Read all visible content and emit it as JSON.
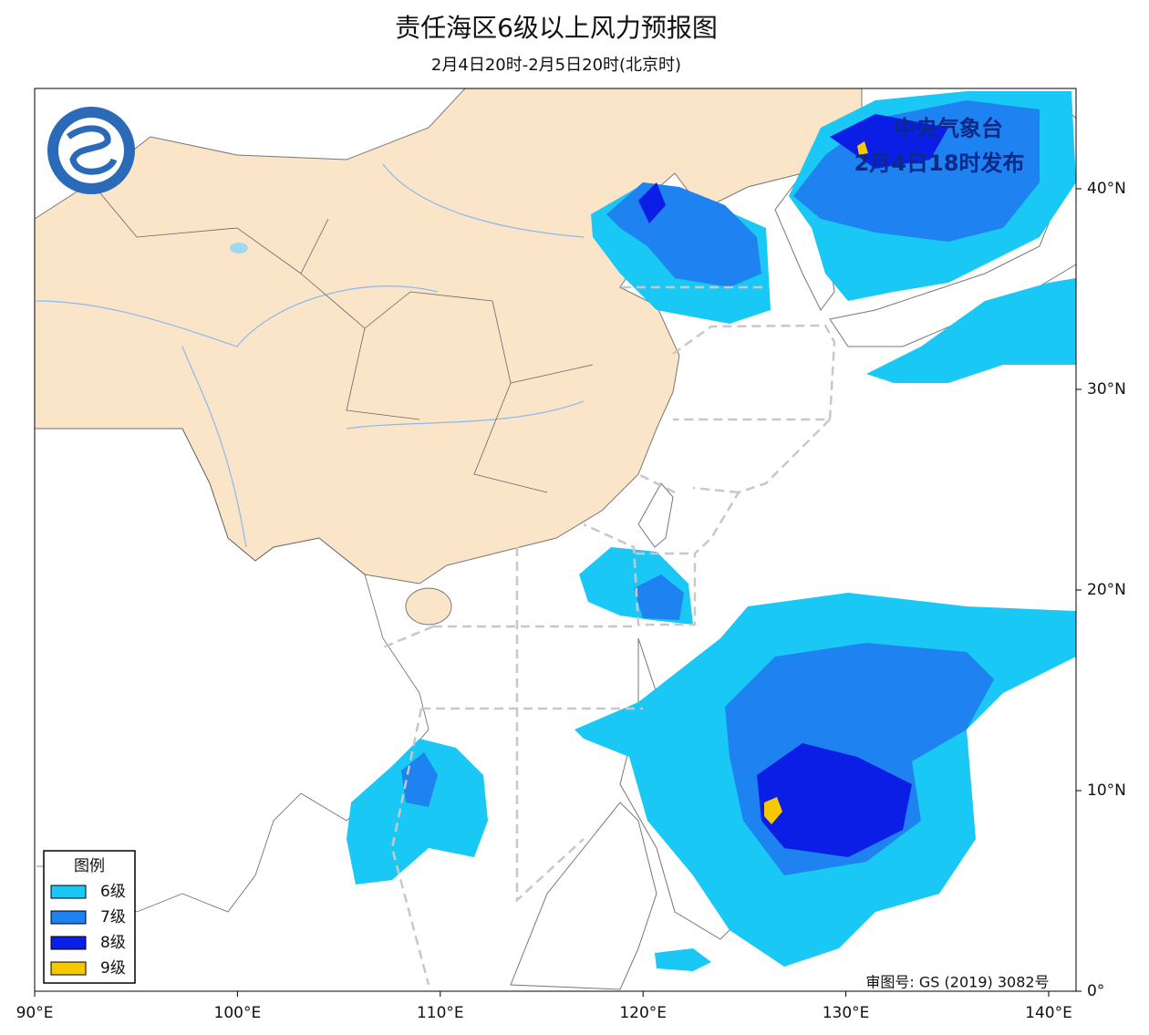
{
  "header": {
    "title": "责任海区6级以上风力预报图",
    "subtitle": "2月4日20时-2月5日20时(北京时)"
  },
  "issuer": {
    "name": "中央气象台",
    "time": "2月4日18时发布"
  },
  "legend": {
    "title": "图例",
    "items": [
      {
        "label": "6级",
        "color": "#19c8f5"
      },
      {
        "label": "7级",
        "color": "#1e82f0"
      },
      {
        "label": "8级",
        "color": "#0a1ee6"
      },
      {
        "label": "9级",
        "color": "#f5c800"
      }
    ]
  },
  "map": {
    "xlim": [
      90,
      141.35
    ],
    "ylim": [
      0,
      45
    ],
    "xticks": [
      {
        "value": 90,
        "label": "90°E"
      },
      {
        "value": 100,
        "label": "100°E"
      },
      {
        "value": 110,
        "label": "110°E"
      },
      {
        "value": 120,
        "label": "120°E"
      },
      {
        "value": 130,
        "label": "130°E"
      },
      {
        "value": 140,
        "label": "140°E"
      }
    ],
    "yticks": [
      {
        "value": 0,
        "label": "0°"
      },
      {
        "value": 10,
        "label": "10°N"
      },
      {
        "value": 20,
        "label": "20°N"
      },
      {
        "value": 30,
        "label": "30°N"
      },
      {
        "value": 40,
        "label": "40°N"
      }
    ]
  },
  "footer": {
    "review_number": "审图号: GS (2019) 3082号"
  }
}
